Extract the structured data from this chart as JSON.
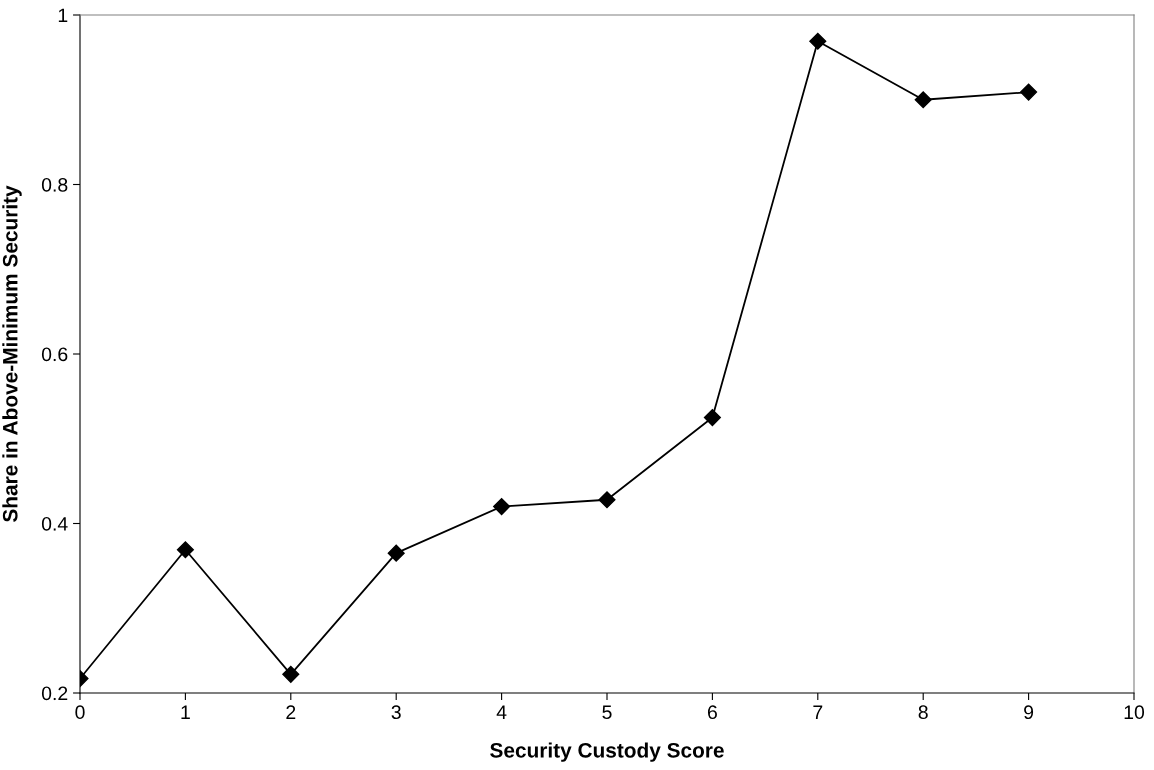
{
  "chart_data": {
    "type": "line",
    "xlabel": "Security Custody Score",
    "ylabel": "Share in Above-Minimum Security",
    "x": [
      0,
      1,
      2,
      3,
      4,
      5,
      6,
      7,
      8,
      9
    ],
    "series": [
      {
        "color": "#000000",
        "values": [
          0.217,
          0.369,
          0.222,
          0.365,
          0.42,
          0.428,
          0.525,
          0.969,
          0.9,
          0.909
        ]
      }
    ],
    "xlim": [
      0,
      10
    ],
    "xticks": [
      0,
      1,
      2,
      3,
      4,
      5,
      6,
      7,
      8,
      9,
      10
    ],
    "ylim": [
      0.2,
      1
    ],
    "yticks": [
      0.2,
      0.4,
      0.6,
      0.8,
      1
    ],
    "marker": "diamond",
    "line_style": "solid",
    "grid": false,
    "legend": false
  }
}
